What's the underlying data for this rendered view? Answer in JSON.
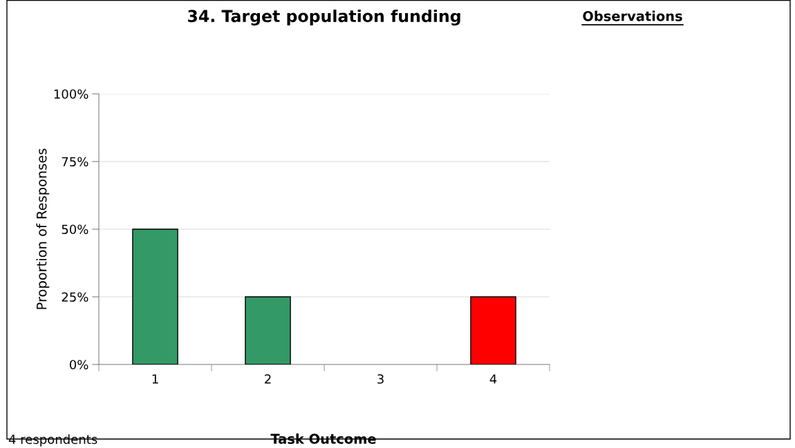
{
  "chart_data": {
    "type": "bar",
    "title": "34. Target population funding",
    "xlabel": "Task Outcome",
    "ylabel": "Proportion of Responses",
    "categories": [
      "1",
      "2",
      "3",
      "4"
    ],
    "values": [
      50,
      25,
      0,
      25
    ],
    "colors": [
      "#339966",
      "#339966",
      "#339966",
      "#ff0000"
    ],
    "ylim": [
      0,
      100
    ],
    "yticks": [
      {
        "value": 0,
        "label": "0%"
      },
      {
        "value": 25,
        "label": "25%"
      },
      {
        "value": 50,
        "label": "50%"
      },
      {
        "value": 75,
        "label": "75%"
      },
      {
        "value": 100,
        "label": "100%"
      }
    ],
    "grid": "y",
    "legend": false,
    "annotations": [
      "Observations",
      "4 respondents"
    ]
  }
}
